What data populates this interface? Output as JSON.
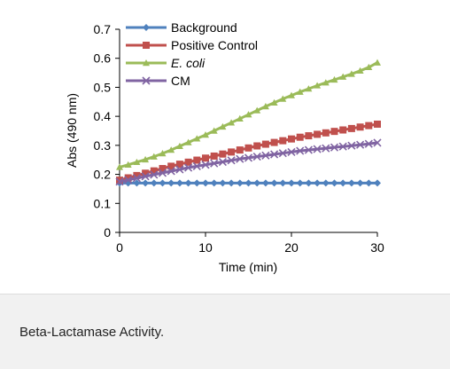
{
  "chart_data": {
    "type": "line",
    "title": "",
    "xlabel": "Time (min)",
    "ylabel": "Abs (490 nm)",
    "xlim": [
      0,
      30
    ],
    "ylim": [
      0,
      0.7
    ],
    "xticks": [
      0,
      10,
      20,
      30
    ],
    "yticks": [
      0,
      0.1,
      0.2,
      0.3,
      0.4,
      0.5,
      0.6,
      0.7
    ],
    "xtick_labels": [
      "0",
      "10",
      "20",
      "30"
    ],
    "ytick_labels": [
      "0",
      "0.1",
      "0.2",
      "0.3",
      "0.4",
      "0.5",
      "0.6",
      "0.7"
    ],
    "grid": false,
    "legend_position": "top-left",
    "x": [
      0,
      1,
      2,
      3,
      4,
      5,
      6,
      7,
      8,
      9,
      10,
      11,
      12,
      13,
      14,
      15,
      16,
      17,
      18,
      19,
      20,
      21,
      22,
      23,
      24,
      25,
      26,
      27,
      28,
      29,
      30
    ],
    "series": [
      {
        "name": "Background",
        "color": "#4f81bd",
        "marker": "diamond",
        "values": [
          0.17,
          0.17,
          0.17,
          0.17,
          0.17,
          0.17,
          0.17,
          0.17,
          0.17,
          0.17,
          0.17,
          0.17,
          0.17,
          0.17,
          0.17,
          0.17,
          0.17,
          0.17,
          0.17,
          0.17,
          0.17,
          0.17,
          0.17,
          0.17,
          0.17,
          0.17,
          0.17,
          0.17,
          0.17,
          0.17,
          0.17
        ]
      },
      {
        "name": "Positive Control",
        "color": "#c0504d",
        "marker": "square",
        "values": [
          0.18,
          0.188,
          0.196,
          0.204,
          0.212,
          0.22,
          0.228,
          0.235,
          0.242,
          0.249,
          0.256,
          0.263,
          0.27,
          0.277,
          0.284,
          0.291,
          0.298,
          0.304,
          0.31,
          0.316,
          0.322,
          0.328,
          0.333,
          0.338,
          0.343,
          0.348,
          0.353,
          0.358,
          0.363,
          0.368,
          0.373
        ]
      },
      {
        "name": "E. coli",
        "color": "#9bbb59",
        "marker": "triangle",
        "values": [
          0.225,
          0.233,
          0.242,
          0.251,
          0.261,
          0.272,
          0.284,
          0.297,
          0.31,
          0.323,
          0.336,
          0.35,
          0.364,
          0.378,
          0.392,
          0.406,
          0.42,
          0.434,
          0.447,
          0.46,
          0.472,
          0.484,
          0.495,
          0.506,
          0.516,
          0.526,
          0.536,
          0.546,
          0.557,
          0.569,
          0.585
        ]
      },
      {
        "name": "CM",
        "color": "#8064a2",
        "marker": "x",
        "values": [
          0.175,
          0.181,
          0.187,
          0.193,
          0.199,
          0.205,
          0.211,
          0.217,
          0.223,
          0.228,
          0.233,
          0.238,
          0.243,
          0.248,
          0.253,
          0.257,
          0.261,
          0.265,
          0.269,
          0.273,
          0.277,
          0.281,
          0.284,
          0.287,
          0.29,
          0.293,
          0.296,
          0.299,
          0.302,
          0.305,
          0.309
        ]
      }
    ]
  },
  "caption": "Beta-Lactamase Activity."
}
